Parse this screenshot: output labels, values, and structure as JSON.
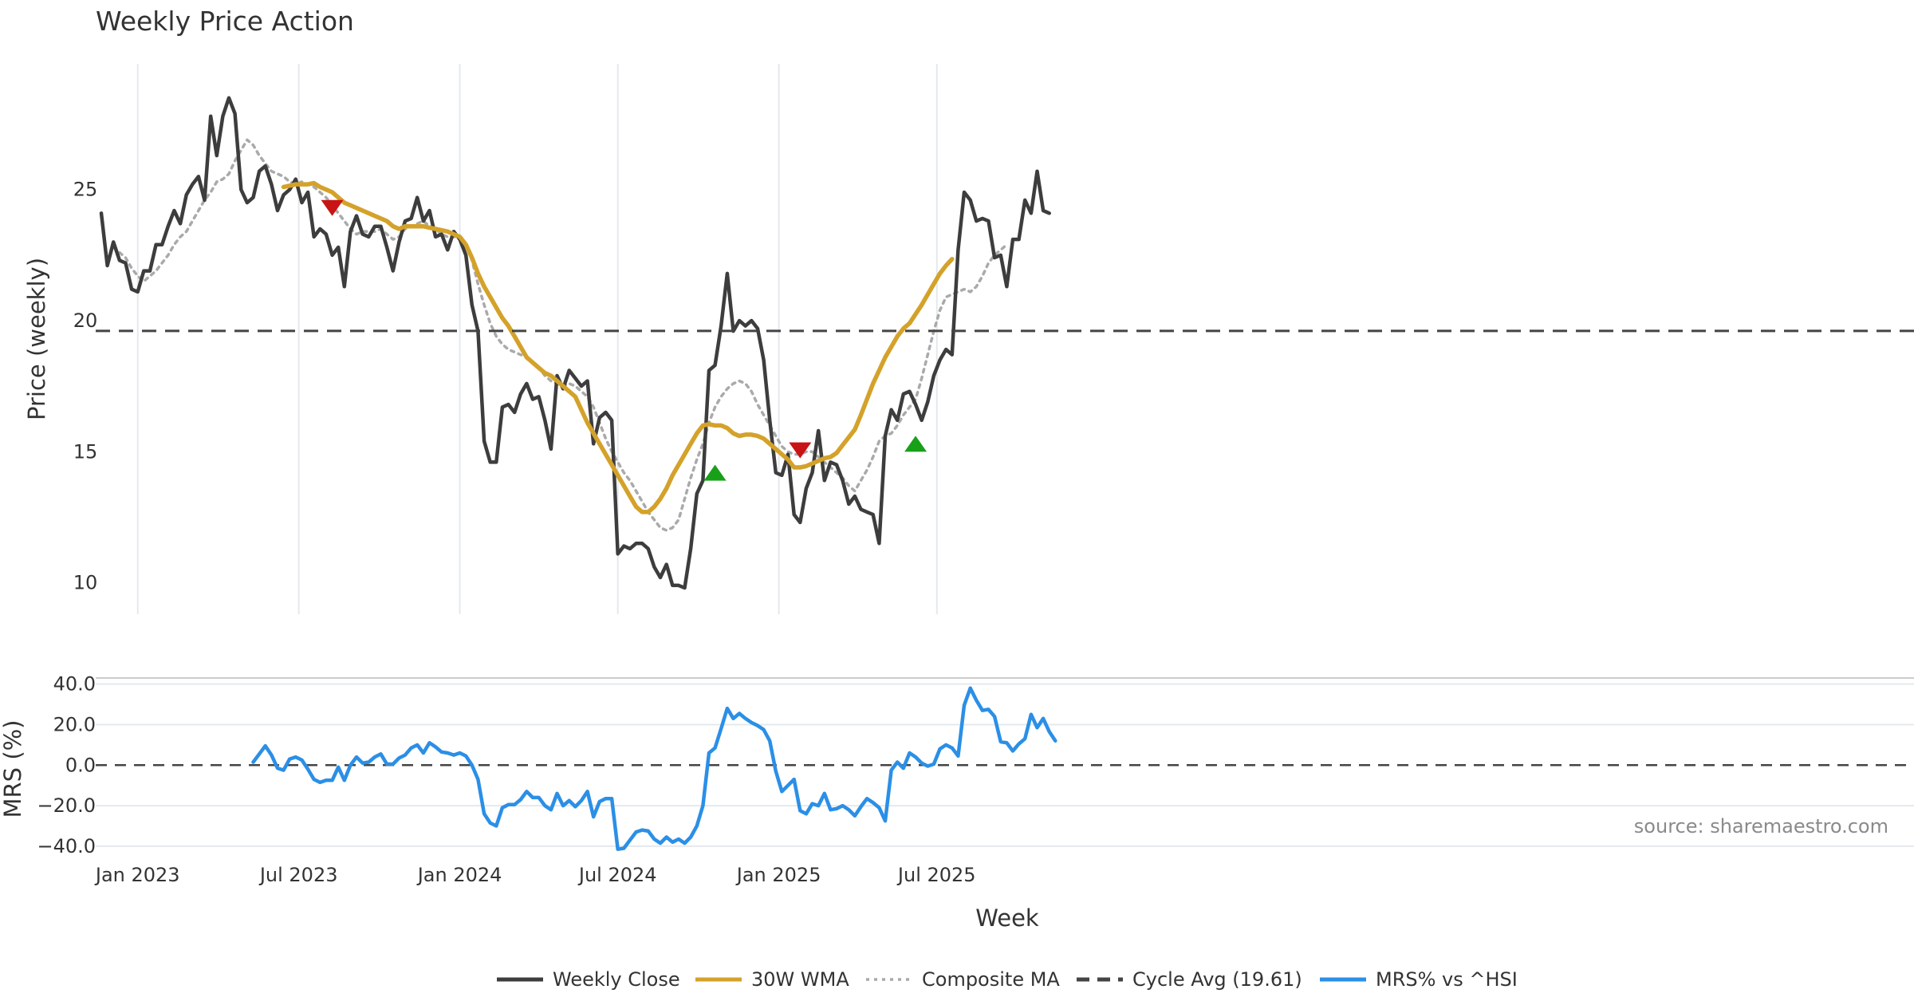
{
  "title": "Weekly Price Action",
  "source": "source: sharemaestro.com",
  "colors": {
    "close": "#3d3d3d",
    "wma": "#d4a22a",
    "composite": "#aaaaaa",
    "cycle": "#444444",
    "mrs": "#2b8fe6",
    "buy": "#18a018",
    "sell": "#c81414",
    "grid": "#e4e9ee"
  },
  "legend": [
    {
      "key": "close",
      "label": "Weekly Close",
      "style": "solid"
    },
    {
      "key": "wma",
      "label": "30W WMA",
      "style": "solid"
    },
    {
      "key": "composite",
      "label": "Composite MA",
      "style": "dotted"
    },
    {
      "key": "cycle",
      "label": "Cycle Avg (19.61)",
      "style": "dashed"
    },
    {
      "key": "mrs",
      "label": "MRS% vs ^HSI",
      "style": "solid"
    }
  ],
  "chart_data": [
    {
      "type": "line",
      "ylabel": "Price (weekly)",
      "ylim": [
        8.8,
        29.8
      ],
      "yticks": [
        10,
        15,
        20,
        25
      ],
      "ytick_labels": [
        "10",
        "15",
        "20",
        "25"
      ],
      "grid": "vertical",
      "x_start": "2022-11-21",
      "x_step_days": 7,
      "cycle_avg": 19.61,
      "series": [
        {
          "name": "Weekly Close",
          "key": "close",
          "start_index": 0,
          "values": [
            24.1,
            22.1,
            23.0,
            22.3,
            22.2,
            21.2,
            21.1,
            21.9,
            21.9,
            22.9,
            22.9,
            23.6,
            24.2,
            23.7,
            24.8,
            25.2,
            25.5,
            24.6,
            27.8,
            26.3,
            27.8,
            28.5,
            27.9,
            25.0,
            24.5,
            24.7,
            25.7,
            25.9,
            25.2,
            24.2,
            24.8,
            25.0,
            25.4,
            24.5,
            24.9,
            23.2,
            23.5,
            23.3,
            22.5,
            22.8,
            21.3,
            23.4,
            24.0,
            23.3,
            23.2,
            23.6,
            23.6,
            22.8,
            21.9,
            23.0,
            23.8,
            23.9,
            24.7,
            23.8,
            24.2,
            23.2,
            23.3,
            22.7,
            23.4,
            23.1,
            22.5,
            20.6,
            19.6,
            15.4,
            14.6,
            14.6,
            16.7,
            16.8,
            16.5,
            17.2,
            17.6,
            17.0,
            17.1,
            16.2,
            15.1,
            17.9,
            17.4,
            18.1,
            17.8,
            17.5,
            17.7,
            15.3,
            16.3,
            16.5,
            16.2,
            11.1,
            11.4,
            11.3,
            11.5,
            11.5,
            11.3,
            10.6,
            10.2,
            10.7,
            9.9,
            9.9,
            9.8,
            11.3,
            13.4,
            13.9,
            18.1,
            18.3,
            19.8,
            21.8,
            19.6,
            20.0,
            19.8,
            20.0,
            19.7,
            18.5,
            16.2,
            14.2,
            14.1,
            14.9,
            12.6,
            12.3,
            13.6,
            14.2,
            15.8,
            13.9,
            14.6,
            14.5,
            13.9,
            13.0,
            13.3,
            12.8,
            12.7,
            12.6,
            11.5,
            15.6,
            16.6,
            16.2,
            17.2,
            17.3,
            16.8,
            16.2,
            16.9,
            17.9,
            18.5,
            18.9,
            18.7,
            22.7,
            24.9,
            24.6,
            23.8,
            23.9,
            23.8,
            22.4,
            22.5,
            21.3,
            23.1,
            23.1,
            24.6,
            24.1,
            25.7,
            24.2,
            24.1
          ]
        },
        {
          "name": "30W WMA",
          "key": "wma",
          "start_index": 30,
          "values": [
            25.1,
            25.15,
            25.2,
            25.2,
            25.2,
            25.25,
            25.1,
            25.0,
            24.9,
            24.7,
            24.5,
            24.4,
            24.3,
            24.2,
            24.1,
            24.0,
            23.9,
            23.8,
            23.6,
            23.5,
            23.6,
            23.6,
            23.6,
            23.6,
            23.55,
            23.5,
            23.45,
            23.4,
            23.3,
            23.2,
            22.9,
            22.4,
            21.8,
            21.3,
            20.9,
            20.5,
            20.1,
            19.8,
            19.4,
            19.0,
            18.6,
            18.4,
            18.2,
            18.0,
            17.9,
            17.7,
            17.5,
            17.3,
            17.1,
            16.6,
            16.1,
            15.7,
            15.3,
            14.9,
            14.5,
            14.1,
            13.7,
            13.3,
            12.9,
            12.7,
            12.7,
            12.9,
            13.2,
            13.6,
            14.1,
            14.5,
            14.9,
            15.3,
            15.7,
            16.0,
            16.05,
            16.0,
            16.0,
            15.9,
            15.7,
            15.6,
            15.65,
            15.65,
            15.6,
            15.5,
            15.3,
            15.1,
            14.9,
            14.7,
            14.4,
            14.4,
            14.45,
            14.55,
            14.65,
            14.75,
            14.8,
            14.95,
            15.25,
            15.55,
            15.85,
            16.4,
            17.0,
            17.6,
            18.1,
            18.6,
            19.0,
            19.4,
            19.7,
            19.9,
            20.25,
            20.6,
            21.0,
            21.4,
            21.8,
            22.1,
            22.35
          ]
        },
        {
          "name": "Composite MA",
          "key": "composite",
          "start_index": 3,
          "values": [
            22.6,
            22.4,
            22.0,
            21.7,
            21.5,
            21.7,
            21.9,
            22.2,
            22.5,
            22.9,
            23.2,
            23.4,
            23.8,
            24.2,
            24.6,
            24.9,
            25.3,
            25.4,
            25.6,
            26.1,
            26.5,
            26.9,
            26.7,
            26.3,
            26.0,
            25.7,
            25.6,
            25.5,
            25.3,
            25.2,
            25.3,
            25.2,
            25.1,
            24.9,
            24.7,
            24.4,
            24.1,
            23.8,
            23.5,
            23.3,
            23.4,
            23.4,
            23.4,
            23.5,
            23.3,
            23.1,
            23.2,
            23.5,
            23.6,
            23.7,
            23.8,
            23.6,
            23.5,
            23.3,
            23.2,
            23.2,
            23.2,
            22.9,
            22.3,
            21.4,
            20.6,
            19.9,
            19.4,
            19.1,
            18.9,
            18.8,
            18.7,
            18.6,
            18.4,
            18.2,
            17.9,
            17.7,
            17.6,
            17.5,
            17.6,
            17.5,
            17.3,
            17.1,
            16.7,
            16.1,
            15.5,
            15.0,
            14.6,
            14.2,
            13.9,
            13.5,
            13.1,
            12.7,
            12.4,
            12.1,
            12.0,
            12.1,
            12.4,
            13.2,
            14.0,
            14.7,
            15.3,
            16.1,
            16.7,
            17.1,
            17.4,
            17.6,
            17.7,
            17.6,
            17.3,
            16.8,
            16.4,
            16.0,
            15.6,
            15.2,
            15.0,
            14.9,
            14.9,
            15.0,
            15.0,
            14.8,
            14.6,
            14.4,
            14.2,
            14.0,
            13.7,
            13.5,
            13.9,
            14.3,
            14.8,
            15.4,
            15.6,
            15.7,
            16.0,
            16.4,
            16.7,
            17.0,
            17.8,
            18.7,
            19.6,
            20.4,
            20.9,
            21.0,
            21.1,
            21.2,
            21.1,
            21.3,
            21.7,
            22.2,
            22.5,
            22.7,
            22.9
          ]
        }
      ],
      "markers": [
        {
          "kind": "sell",
          "index": 38,
          "value": 24.3
        },
        {
          "kind": "buy",
          "index": 101,
          "value": 14.2
        },
        {
          "kind": "sell",
          "index": 115,
          "value": 15.05
        },
        {
          "kind": "buy",
          "index": 134,
          "value": 15.3
        }
      ]
    },
    {
      "type": "line",
      "xlabel": "Week",
      "ylabel": "MRS (%)",
      "ylim": [
        -42,
        43
      ],
      "yticks": [
        -40,
        -20,
        0,
        20,
        40
      ],
      "ytick_labels": [
        "−40.0",
        "−20.0",
        "0.0",
        "20.0",
        "40.0"
      ],
      "x_ticks": [
        {
          "label": "Jan 2023",
          "index": 6
        },
        {
          "label": "Jul 2023",
          "index": 32.5
        },
        {
          "label": "Jan 2024",
          "index": 59
        },
        {
          "label": "Jul 2024",
          "index": 85
        },
        {
          "label": "Jan 2025",
          "index": 111.5
        },
        {
          "label": "Jul 2025",
          "index": 137.5
        }
      ],
      "series": [
        {
          "name": "MRS% vs ^HSI",
          "key": "mrs",
          "start_index": 25,
          "values": [
            1.5,
            5.5,
            9.5,
            5.0,
            -1.5,
            -2.5,
            3.0,
            4.0,
            2.5,
            -2.0,
            -7.0,
            -8.5,
            -7.5,
            -7.5,
            -1.0,
            -7.5,
            0.0,
            4.0,
            1.0,
            1.5,
            4.0,
            5.5,
            0.5,
            0.5,
            3.5,
            5.0,
            8.5,
            10.0,
            6.0,
            11.0,
            9.0,
            6.5,
            6.0,
            5.0,
            6.0,
            4.5,
            0.0,
            -7.0,
            -24.0,
            -28.5,
            -30.0,
            -21.0,
            -19.5,
            -19.5,
            -17.0,
            -13.0,
            -16.0,
            -16.0,
            -20.0,
            -22.0,
            -14.0,
            -20.0,
            -17.5,
            -20.5,
            -17.5,
            -13.0,
            -25.5,
            -18.0,
            -16.5,
            -16.5,
            -41.5,
            -41.0,
            -37.0,
            -33.0,
            -32.0,
            -32.5,
            -36.5,
            -38.5,
            -35.5,
            -38.0,
            -36.5,
            -38.5,
            -35.5,
            -30.0,
            -20.0,
            6.0,
            8.5,
            18.0,
            28.0,
            23.0,
            25.5,
            23.0,
            21.0,
            19.5,
            17.5,
            12.0,
            -3.0,
            -13.0,
            -10.0,
            -7.0,
            -22.5,
            -24.0,
            -19.0,
            -20.0,
            -14.0,
            -22.0,
            -21.5,
            -20.0,
            -22.0,
            -25.0,
            -20.5,
            -16.5,
            -18.5,
            -21.0,
            -27.5,
            -2.5,
            1.5,
            -1.5,
            6.0,
            4.0,
            1.0,
            -0.5,
            0.5,
            8.0,
            10.0,
            8.5,
            4.5,
            29.5,
            38.0,
            32.0,
            27.0,
            27.5,
            24.0,
            11.5,
            11.0,
            7.0,
            10.5,
            13.0,
            25.0,
            18.5,
            23.0,
            16.5,
            12.0
          ]
        }
      ]
    }
  ]
}
